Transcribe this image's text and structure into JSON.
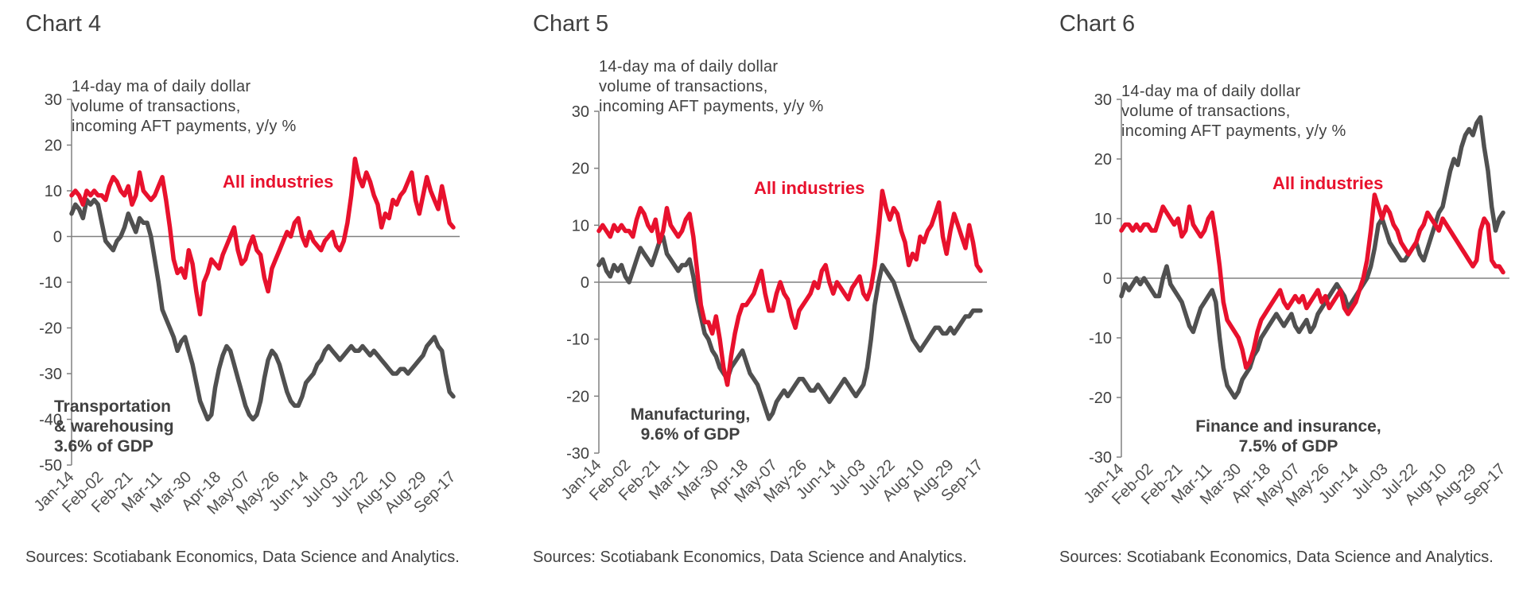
{
  "charts": [
    {
      "title": "Chart 4",
      "note": "14-day  ma of daily dollar\nvolume of transactions,\nincoming AFT payments, y/y %",
      "sources": "Sources: Scotiabank Economics, Data Science and Analytics.",
      "series_labels": {
        "all": "All industries",
        "sector": "Transportation\n& warehousing\n3.6% of GDP"
      }
    },
    {
      "title": "Chart 5",
      "note": "14-day  ma of daily dollar\nvolume of transactions,\nincoming AFT payments, y/y %",
      "sources": "Sources: Scotiabank Economics, Data Science and Analytics.",
      "series_labels": {
        "all": "All industries",
        "sector": "Manufacturing,\n9.6% of GDP"
      }
    },
    {
      "title": "Chart 6",
      "note": "14-day  ma of daily dollar\nvolume of transactions,\nincoming AFT payments, y/y %",
      "sources": "Sources: Scotiabank Economics, Data Science and Analytics.",
      "series_labels": {
        "all": "All industries",
        "sector": "Finance and insurance,\n7.5% of GDP"
      }
    }
  ],
  "chart_data": [
    {
      "type": "line",
      "title": "Chart 4",
      "x_ticks": [
        "Jan-14",
        "Feb-02",
        "Feb-21",
        "Mar-11",
        "Mar-30",
        "Apr-18",
        "May-07",
        "May-26",
        "Jun-14",
        "Jul-03",
        "Jul-22",
        "Aug-10",
        "Aug-29",
        "Sep-17"
      ],
      "ylim": [
        -50,
        30
      ],
      "y_ticks": [
        30,
        20,
        10,
        0,
        -10,
        -20,
        -30,
        -40,
        -50
      ],
      "colors": {
        "all": "#e8112d",
        "sector": "#505050",
        "axis": "#808080"
      },
      "series": [
        {
          "name": "All industries",
          "key": "all",
          "values": [
            9,
            10,
            9,
            7,
            10,
            9,
            10,
            9,
            9,
            8,
            11,
            13,
            12,
            10,
            9,
            11,
            7,
            9,
            14,
            10,
            9,
            8,
            9,
            11,
            13,
            8,
            2,
            -5,
            -8,
            -7,
            -9,
            -3,
            -6,
            -12,
            -17,
            -10,
            -8,
            -5,
            -6,
            -7,
            -4,
            -2,
            0,
            2,
            -3,
            -6,
            -5,
            -2,
            0,
            -3,
            -4,
            -9,
            -12,
            -7,
            -5,
            -3,
            -1,
            1,
            0,
            3,
            4,
            0,
            -2,
            1,
            -1,
            -2,
            -3,
            -1,
            0,
            1,
            -2,
            -3,
            -1,
            3,
            9,
            17,
            13,
            11,
            14,
            12,
            9,
            7,
            2,
            5,
            4,
            8,
            7,
            9,
            10,
            12,
            14,
            8,
            5,
            9,
            13,
            10,
            8,
            6,
            11,
            7,
            3,
            2
          ]
        },
        {
          "name": "Transportation & warehousing",
          "key": "sector",
          "values": [
            5,
            7,
            6,
            4,
            8,
            7,
            8,
            7,
            3,
            -1,
            -2,
            -3,
            -1,
            0,
            2,
            5,
            3,
            1,
            4,
            3,
            3,
            0,
            -5,
            -10,
            -16,
            -18,
            -20,
            -22,
            -25,
            -23,
            -22,
            -25,
            -28,
            -32,
            -36,
            -38,
            -40,
            -39,
            -33,
            -29,
            -26,
            -24,
            -25,
            -28,
            -31,
            -34,
            -37,
            -39,
            -40,
            -39,
            -36,
            -31,
            -27,
            -25,
            -26,
            -28,
            -31,
            -34,
            -36,
            -37,
            -37,
            -35,
            -32,
            -31,
            -30,
            -28,
            -27,
            -25,
            -24,
            -25,
            -26,
            -27,
            -26,
            -25,
            -24,
            -25,
            -25,
            -24,
            -25,
            -26,
            -25,
            -26,
            -27,
            -28,
            -29,
            -30,
            -30,
            -29,
            -29,
            -30,
            -29,
            -28,
            -27,
            -26,
            -24,
            -23,
            -22,
            -24,
            -25,
            -30,
            -34,
            -35
          ]
        }
      ]
    },
    {
      "type": "line",
      "title": "Chart 5",
      "x_ticks": [
        "Jan-14",
        "Feb-02",
        "Feb-21",
        "Mar-11",
        "Mar-30",
        "Apr-18",
        "May-07",
        "May-26",
        "Jun-14",
        "Jul-03",
        "Jul-22",
        "Aug-10",
        "Aug-29",
        "Sep-17"
      ],
      "ylim": [
        -30,
        30
      ],
      "y_ticks": [
        30,
        20,
        10,
        0,
        -10,
        -20,
        -30
      ],
      "colors": {
        "all": "#e8112d",
        "sector": "#505050",
        "axis": "#808080"
      },
      "series": [
        {
          "name": "All industries",
          "key": "all",
          "values": [
            9,
            10,
            9,
            8,
            10,
            9,
            10,
            9,
            9,
            8,
            11,
            13,
            12,
            10,
            9,
            11,
            7,
            9,
            13,
            10,
            9,
            8,
            9,
            11,
            12,
            8,
            2,
            -4,
            -7,
            -7,
            -9,
            -6,
            -10,
            -15,
            -18,
            -13,
            -9,
            -6,
            -4,
            -4,
            -3,
            -2,
            0,
            2,
            -2,
            -5,
            -5,
            -2,
            0,
            -2,
            -3,
            -6,
            -8,
            -5,
            -4,
            -3,
            -2,
            0,
            -1,
            2,
            3,
            0,
            -2,
            0,
            -1,
            -2,
            -3,
            -1,
            0,
            1,
            -2,
            -3,
            -1,
            3,
            9,
            16,
            13,
            11,
            13,
            12,
            9,
            7,
            3,
            5,
            4,
            8,
            7,
            9,
            10,
            12,
            14,
            8,
            5,
            9,
            12,
            10,
            8,
            6,
            10,
            7,
            3,
            2
          ]
        },
        {
          "name": "Manufacturing",
          "key": "sector",
          "values": [
            3,
            4,
            2,
            1,
            3,
            2,
            3,
            1,
            0,
            2,
            4,
            6,
            5,
            4,
            3,
            5,
            7,
            8,
            5,
            4,
            3,
            2,
            3,
            3,
            4,
            1,
            -3,
            -6,
            -9,
            -10,
            -12,
            -13,
            -15,
            -16,
            -17,
            -15,
            -14,
            -13,
            -12,
            -14,
            -16,
            -17,
            -18,
            -20,
            -22,
            -24,
            -23,
            -21,
            -20,
            -19,
            -20,
            -19,
            -18,
            -17,
            -17,
            -18,
            -19,
            -19,
            -18,
            -19,
            -20,
            -21,
            -20,
            -19,
            -18,
            -17,
            -18,
            -19,
            -20,
            -19,
            -18,
            -15,
            -10,
            -4,
            0,
            3,
            2,
            1,
            0,
            -2,
            -4,
            -6,
            -8,
            -10,
            -11,
            -12,
            -11,
            -10,
            -9,
            -8,
            -8,
            -9,
            -9,
            -8,
            -9,
            -8,
            -7,
            -6,
            -6,
            -5,
            -5,
            -5
          ]
        }
      ]
    },
    {
      "type": "line",
      "title": "Chart 6",
      "x_ticks": [
        "Jan-14",
        "Feb-02",
        "Feb-21",
        "Mar-11",
        "Mar-30",
        "Apr-18",
        "May-07",
        "May-26",
        "Jun-14",
        "Jul-03",
        "Jul-22",
        "Aug-10",
        "Aug-29",
        "Sep-17"
      ],
      "ylim": [
        -30,
        30
      ],
      "y_ticks": [
        30,
        20,
        10,
        0,
        -10,
        -20,
        -30
      ],
      "colors": {
        "all": "#e8112d",
        "sector": "#505050",
        "axis": "#808080"
      },
      "series": [
        {
          "name": "All industries",
          "key": "all",
          "values": [
            8,
            9,
            9,
            8,
            9,
            8,
            9,
            9,
            8,
            8,
            10,
            12,
            11,
            10,
            9,
            10,
            7,
            8,
            12,
            9,
            8,
            7,
            8,
            10,
            11,
            7,
            2,
            -4,
            -7,
            -8,
            -9,
            -10,
            -12,
            -15,
            -14,
            -12,
            -9,
            -7,
            -6,
            -5,
            -4,
            -3,
            -2,
            -4,
            -5,
            -4,
            -3,
            -4,
            -3,
            -5,
            -4,
            -3,
            -2,
            -4,
            -3,
            -5,
            -4,
            -3,
            -2,
            -5,
            -6,
            -5,
            -4,
            -2,
            0,
            3,
            8,
            14,
            12,
            10,
            12,
            11,
            9,
            8,
            6,
            5,
            4,
            5,
            6,
            8,
            9,
            11,
            10,
            9,
            8,
            10,
            9,
            8,
            7,
            6,
            5,
            4,
            3,
            2,
            3,
            8,
            10,
            9,
            3,
            2,
            2,
            1
          ]
        },
        {
          "name": "Finance and insurance",
          "key": "sector",
          "values": [
            -3,
            -1,
            -2,
            -1,
            0,
            -1,
            0,
            -1,
            -2,
            -3,
            -3,
            0,
            2,
            -1,
            -2,
            -3,
            -4,
            -6,
            -8,
            -9,
            -7,
            -5,
            -4,
            -3,
            -2,
            -4,
            -10,
            -15,
            -18,
            -19,
            -20,
            -19,
            -17,
            -16,
            -15,
            -13,
            -12,
            -10,
            -9,
            -8,
            -7,
            -6,
            -7,
            -8,
            -7,
            -6,
            -8,
            -9,
            -8,
            -7,
            -9,
            -8,
            -6,
            -5,
            -4,
            -3,
            -2,
            -1,
            -2,
            -3,
            -5,
            -4,
            -3,
            -2,
            -1,
            0,
            2,
            5,
            9,
            10,
            8,
            6,
            5,
            4,
            3,
            3,
            4,
            5,
            6,
            4,
            3,
            5,
            7,
            9,
            11,
            12,
            15,
            18,
            20,
            19,
            22,
            24,
            25,
            24,
            26,
            27,
            22,
            18,
            12,
            8,
            10,
            11
          ]
        }
      ]
    }
  ]
}
